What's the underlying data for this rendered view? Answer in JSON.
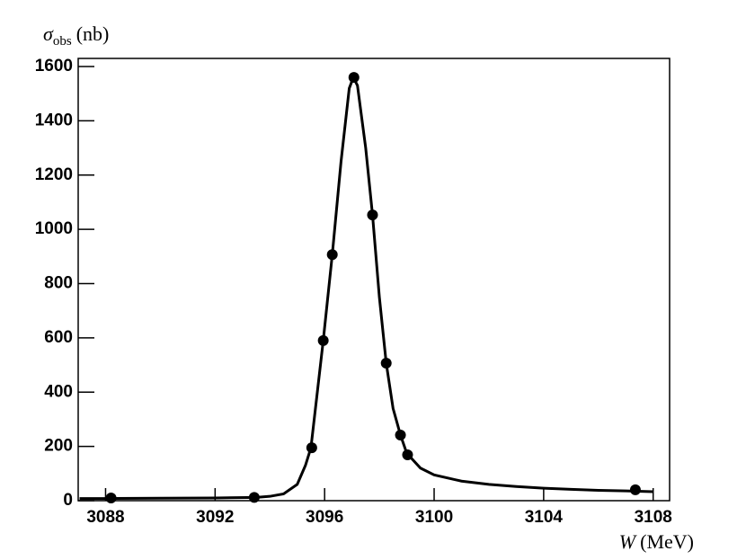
{
  "chart_data": {
    "type": "scatter",
    "x_label": {
      "symbol": "W",
      "unit": "(MeV)"
    },
    "y_label": {
      "symbol": "σ",
      "subscript": "obs",
      "unit": "(nb)"
    },
    "xlim": [
      3087,
      3108.6
    ],
    "ylim": [
      0,
      1630
    ],
    "xticks": [
      3088,
      3092,
      3096,
      3100,
      3104,
      3108
    ],
    "yticks": [
      0,
      200,
      400,
      600,
      800,
      1000,
      1200,
      1400,
      1600
    ],
    "series": [
      {
        "type": "line",
        "color": "#000000",
        "x": [
          3087.05,
          3088,
          3090,
          3092,
          3093.5,
          3094,
          3094.5,
          3095,
          3095.3,
          3095.5,
          3095.95,
          3096.28,
          3096.6,
          3096.9,
          3097.05,
          3097.2,
          3097.5,
          3097.75,
          3098,
          3098.25,
          3098.5,
          3098.77,
          3099,
          3099.5,
          3100,
          3101,
          3102,
          3103,
          3104,
          3105,
          3106,
          3107,
          3108
        ],
        "values": [
          8,
          8,
          9,
          10,
          12,
          16,
          25,
          60,
          130,
          195,
          590,
          907,
          1250,
          1520,
          1560,
          1530,
          1300,
          1053,
          750,
          507,
          340,
          242,
          175,
          120,
          95,
          72,
          60,
          52,
          46,
          42,
          38,
          36,
          33
        ]
      },
      {
        "type": "scatter",
        "color": "#000000",
        "x": [
          3088.2,
          3093.43,
          3095.53,
          3095.95,
          3096.28,
          3097.07,
          3097.75,
          3098.25,
          3098.77,
          3099.03,
          3107.35
        ],
        "values": [
          10,
          12,
          195,
          590,
          907,
          1560,
          1053,
          507,
          242,
          169,
          40
        ]
      }
    ]
  }
}
